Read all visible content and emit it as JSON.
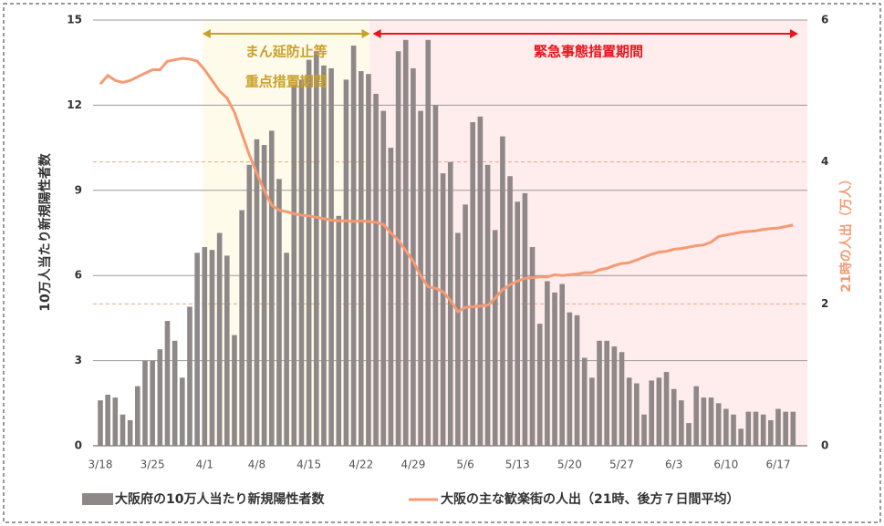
{
  "chart_data": {
    "type": "bar_line",
    "y_label": "10万人当たり新規陽性者数",
    "y2_label": "21時の人出（万人）",
    "annotations": [
      "まん延防止等",
      "重点措置期間",
      "緊急事態措置期間"
    ],
    "categories": [
      "3/18",
      null,
      null,
      null,
      null,
      null,
      null,
      "3/25",
      null,
      null,
      null,
      null,
      null,
      null,
      "4/1",
      null,
      null,
      null,
      null,
      null,
      null,
      "4/8",
      null,
      null,
      null,
      null,
      null,
      null,
      "4/15",
      null,
      null,
      null,
      null,
      null,
      null,
      "4/22",
      null,
      null,
      null,
      null,
      null,
      null,
      "4/29",
      null,
      null,
      null,
      null,
      null,
      null,
      "5/6",
      null,
      null,
      null,
      null,
      null,
      null,
      "5/13",
      null,
      null,
      null,
      null,
      null,
      null,
      "5/20",
      null,
      null,
      null,
      null,
      null,
      null,
      "5/27",
      null,
      null,
      null,
      null,
      null,
      null,
      "6/3",
      null,
      null,
      null,
      null,
      null,
      null,
      "6/10",
      null,
      null,
      null,
      null,
      null,
      null,
      "6/17",
      null,
      null
    ],
    "series": [
      {
        "name": "大阪府の10万人当たり新規陽性者数",
        "color": "#8e8888",
        "kind": "bar",
        "values": [
          1.6,
          1.8,
          1.7,
          1.1,
          0.9,
          2.1,
          3.0,
          3.0,
          3.4,
          4.4,
          3.7,
          2.4,
          4.9,
          6.8,
          7.0,
          6.9,
          7.5,
          6.7,
          3.9,
          8.3,
          9.9,
          10.8,
          10.6,
          11.1,
          9.4,
          6.8,
          12.7,
          12.9,
          13.6,
          13.9,
          13.4,
          13.3,
          8.1,
          12.9,
          14.1,
          13.2,
          13.1,
          12.4,
          11.8,
          10.5,
          13.9,
          14.3,
          13.3,
          11.8,
          14.3,
          12.0,
          9.6,
          10.0,
          7.5,
          8.5,
          11.4,
          11.6,
          9.9,
          7.6,
          10.9,
          9.5,
          8.6,
          8.9,
          7.0,
          4.3,
          5.8,
          5.4,
          5.7,
          4.7,
          4.6,
          3.1,
          2.4,
          3.7,
          3.7,
          3.5,
          3.3,
          2.4,
          2.2,
          1.1,
          2.3,
          2.4,
          2.6,
          2.0,
          1.6,
          0.8,
          2.1,
          1.7,
          1.7,
          1.5,
          1.3,
          1.1,
          0.6,
          1.2,
          1.2,
          1.1,
          0.9,
          1.3,
          1.2,
          1.2
        ]
      },
      {
        "name": "大阪の主な歓楽街の人出（21時、後方７日間平均）",
        "color": "#f59a72",
        "kind": "line",
        "axis": "y2",
        "values": [
          5.1,
          5.22,
          5.15,
          5.12,
          5.15,
          5.2,
          5.25,
          5.3,
          5.3,
          5.42,
          5.44,
          5.46,
          5.45,
          5.42,
          5.3,
          5.15,
          5.0,
          4.9,
          4.7,
          4.4,
          4.1,
          3.84,
          3.6,
          3.39,
          3.32,
          3.3,
          3.27,
          3.25,
          3.24,
          3.22,
          3.2,
          3.18,
          3.17,
          3.17,
          3.16,
          3.17,
          3.16,
          3.15,
          3.12,
          3.0,
          2.9,
          2.75,
          2.6,
          2.4,
          2.24,
          2.22,
          2.17,
          2.05,
          1.89,
          1.95,
          1.96,
          1.97,
          1.98,
          2.08,
          2.2,
          2.27,
          2.32,
          2.36,
          2.37,
          2.38,
          2.38,
          2.41,
          2.4,
          2.41,
          2.42,
          2.44,
          2.44,
          2.48,
          2.5,
          2.54,
          2.57,
          2.58,
          2.62,
          2.66,
          2.7,
          2.73,
          2.74,
          2.77,
          2.78,
          2.8,
          2.82,
          2.83,
          2.87,
          2.95,
          2.97,
          2.99,
          3.01,
          3.02,
          3.03,
          3.05,
          3.06,
          3.07,
          3.09,
          3.11
        ]
      }
    ],
    "ylim": [
      0,
      15
    ],
    "yticks": [
      0,
      3,
      6,
      9,
      12,
      15
    ],
    "y2lim": [
      0,
      6
    ],
    "y2ticks": [
      0,
      2,
      4,
      6
    ],
    "grid": true
  }
}
